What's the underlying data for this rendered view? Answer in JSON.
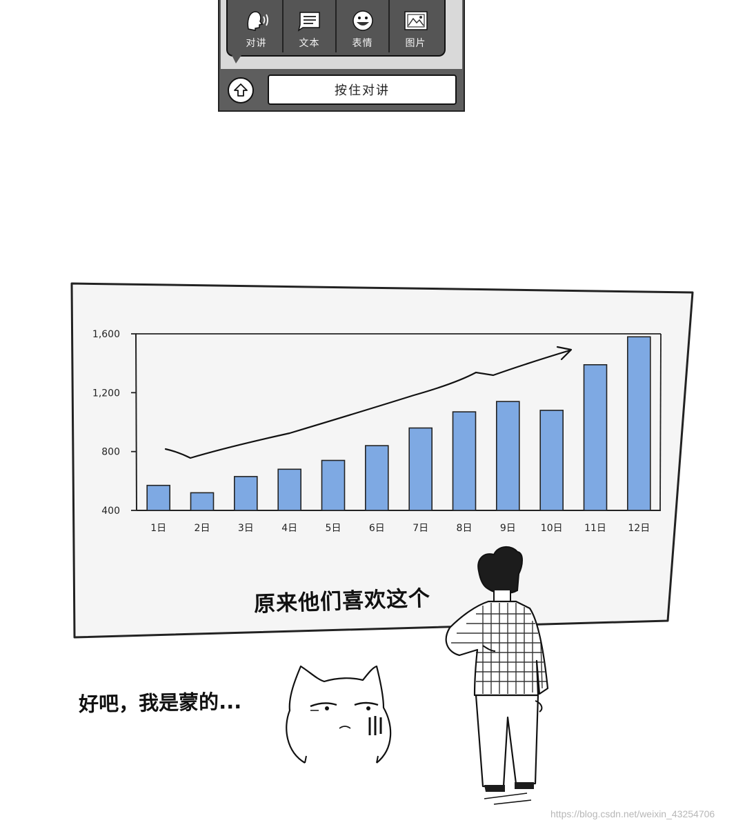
{
  "chat_panel": {
    "menu_items": [
      {
        "label": "对讲",
        "icon": "speaker-head-icon"
      },
      {
        "label": "文本",
        "icon": "text-icon"
      },
      {
        "label": "表情",
        "icon": "smiley-icon"
      },
      {
        "label": "图片",
        "icon": "image-icon"
      }
    ],
    "up_button_icon": "up-arrow-icon",
    "talk_button_label": "按住对讲"
  },
  "caption": "原来他们喜欢这个",
  "speech": "好吧，我是蒙的...",
  "watermark": "https://blog.csdn.net/weixin_43254706",
  "colors": {
    "bar": "#7ea9e3",
    "panel_dark": "#555555",
    "board": "#f5f5f5"
  },
  "chart_data": {
    "type": "bar",
    "categories": [
      "1日",
      "2日",
      "3日",
      "4日",
      "5日",
      "6日",
      "7日",
      "8日",
      "9日",
      "10日",
      "11日",
      "12日"
    ],
    "values": [
      570,
      520,
      630,
      680,
      740,
      840,
      960,
      1070,
      1140,
      1080,
      1390,
      1580
    ],
    "ytick_labels": [
      "400",
      "800",
      "1,200",
      "1,600"
    ],
    "yticks": [
      400,
      800,
      1200,
      1600
    ],
    "ylim": [
      400,
      1600
    ],
    "trend_arrow": true,
    "title": "",
    "xlabel": "",
    "ylabel": ""
  }
}
